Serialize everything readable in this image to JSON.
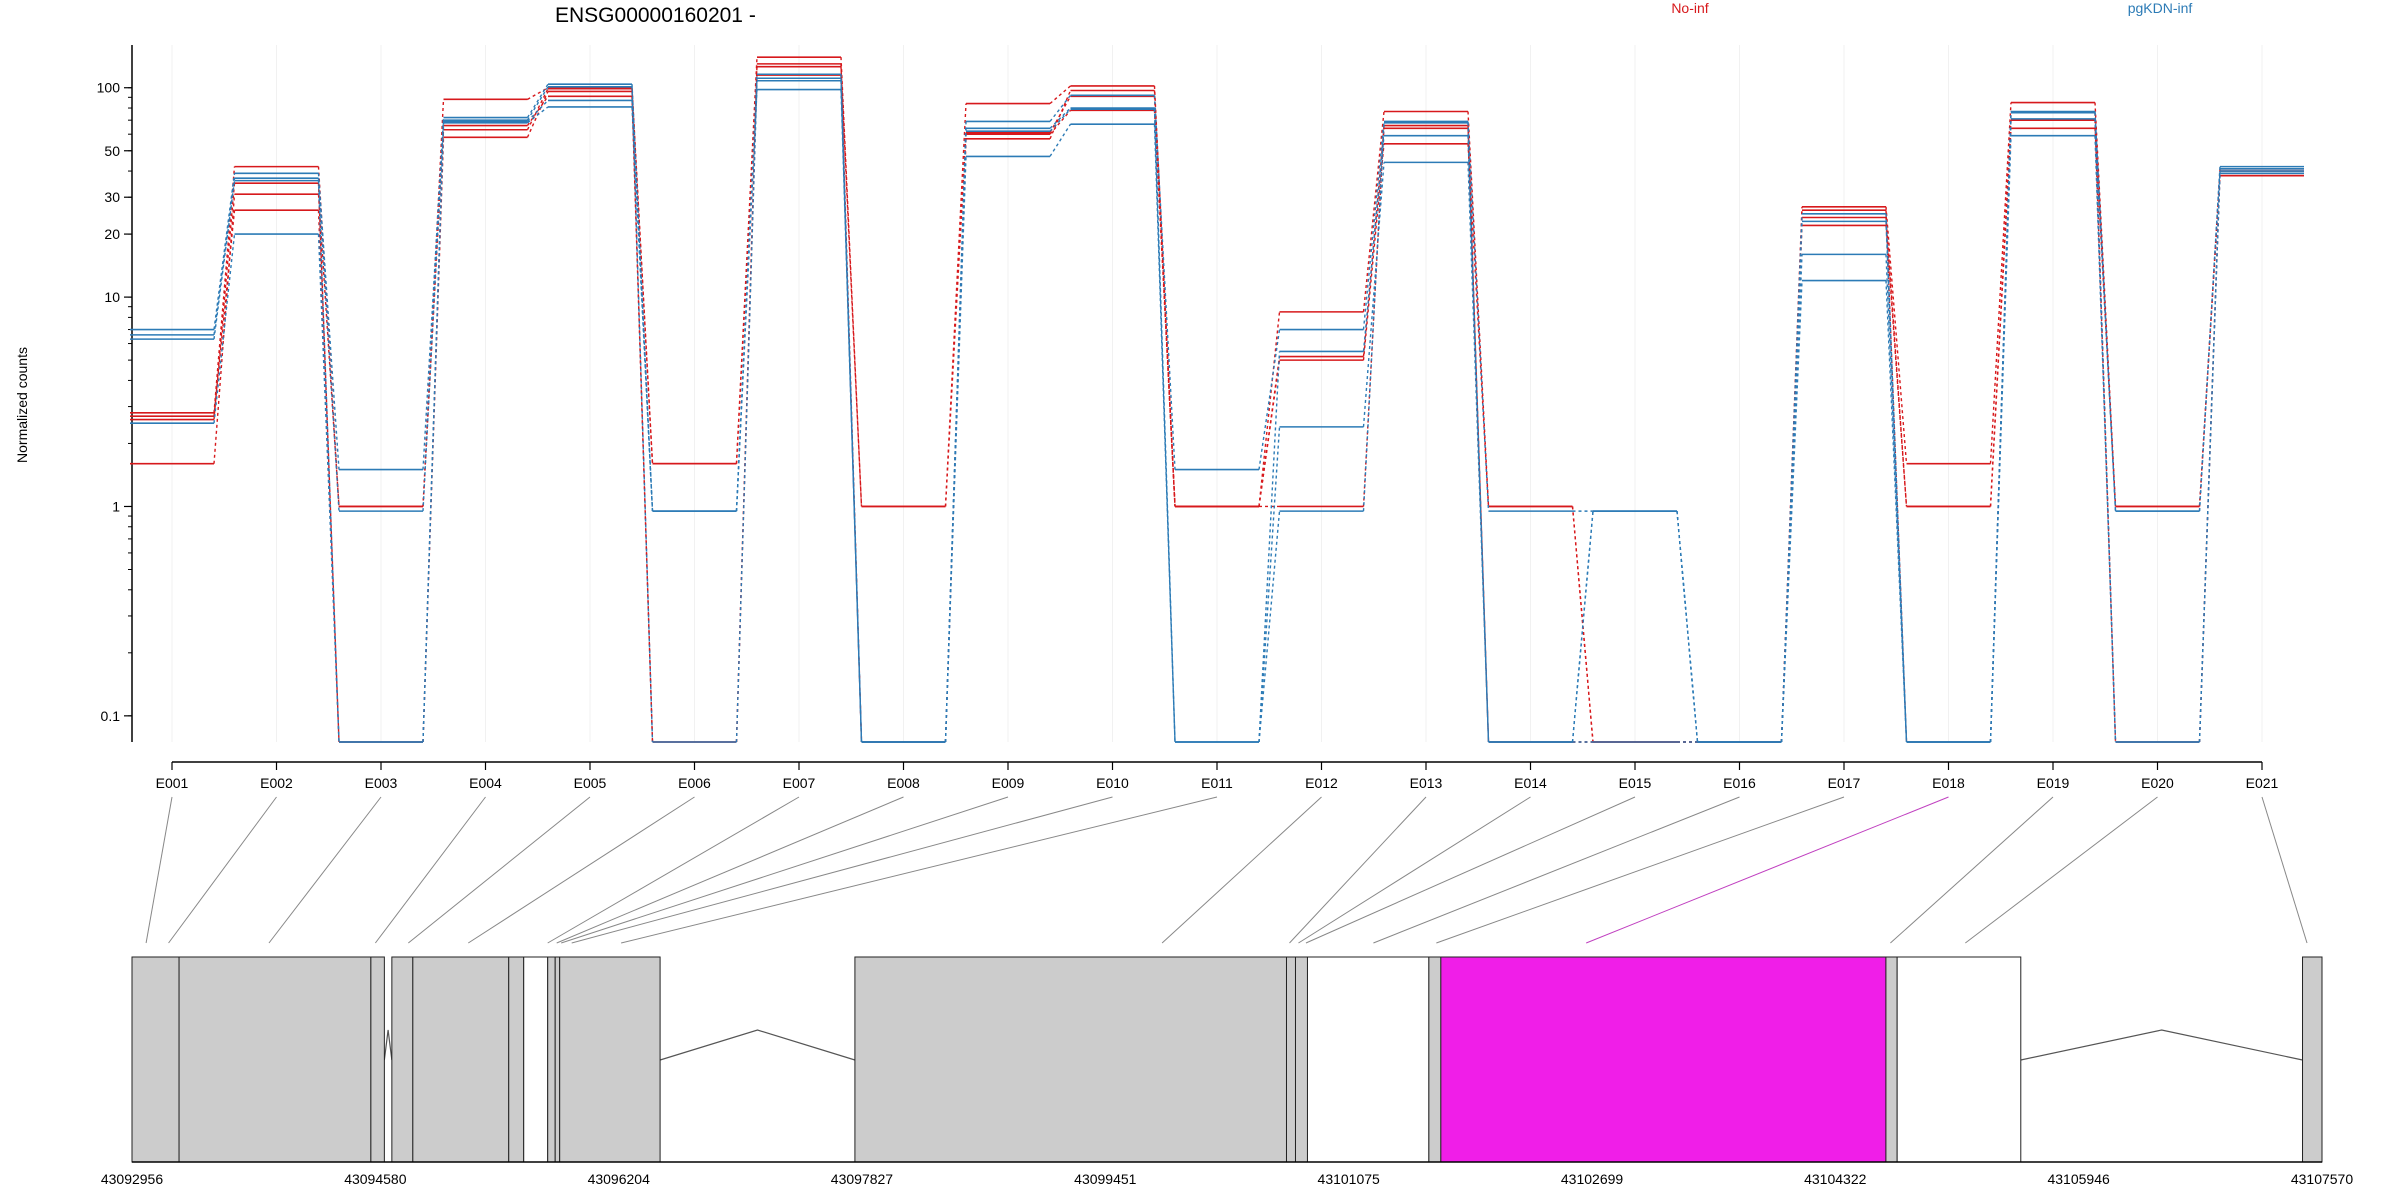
{
  "chart_data": {
    "type": "line",
    "title": "ENSG00000160201 -",
    "ylabel": "Normalized counts",
    "y_scale": "log",
    "y_ticks": [
      0.1,
      1,
      10,
      20,
      30,
      50,
      100
    ],
    "y_tick_labels": [
      "0.1",
      "1",
      "10",
      "20",
      "30",
      "50",
      "100"
    ],
    "ylim": [
      0.075,
      160
    ],
    "grid": "faint vertical",
    "legend_placement": "top",
    "categories": [
      "E001",
      "E002",
      "E003",
      "E004",
      "E005",
      "E006",
      "E007",
      "E008",
      "E009",
      "E010",
      "E011",
      "E012",
      "E013",
      "E014",
      "E015",
      "E016",
      "E017",
      "E018",
      "E019",
      "E020",
      "E021"
    ],
    "series": [
      {
        "name": "No-inf",
        "group": "No-inf",
        "values": [
          2.8,
          42,
          1,
          88,
          100,
          1.6,
          140,
          1,
          84,
          102,
          1,
          8.5,
          77,
          1,
          0.075,
          0.075,
          27,
          1.6,
          85,
          1,
          40
        ]
      },
      {
        "name": "",
        "group": "No-inf",
        "values": [
          1.6,
          31,
          1,
          63,
          99,
          1.6,
          126,
          1,
          61,
          91,
          1,
          5,
          54,
          1,
          0.075,
          0.075,
          24,
          1,
          64,
          1,
          38
        ]
      },
      {
        "name": "",
        "group": "No-inf",
        "values": [
          2.6,
          35,
          0.075,
          66,
          91,
          0.075,
          130,
          0.075,
          60,
          78,
          1,
          1,
          66,
          0.075,
          0.075,
          0.075,
          22,
          1,
          70,
          0.075,
          39
        ]
      },
      {
        "name": "",
        "group": "No-inf",
        "values": [
          2.7,
          26,
          0.075,
          58,
          96,
          0.075,
          115,
          0.075,
          57,
          97,
          1,
          5.2,
          64,
          0.075,
          0.075,
          0.075,
          26,
          0.075,
          76,
          0.075,
          41
        ]
      },
      {
        "name": "pgKDN-inf",
        "group": "pgKDN-inf",
        "values": [
          7,
          39,
          1.5,
          72,
          104,
          0.95,
          116,
          0.075,
          69,
          92,
          1.5,
          7,
          69,
          0.95,
          0.95,
          0.075,
          16,
          0.075,
          77,
          0.95,
          42
        ]
      },
      {
        "name": "",
        "group": "pgKDN-inf",
        "values": [
          6.3,
          36,
          0.075,
          68,
          81,
          0.95,
          98,
          0.075,
          47,
          67,
          0.075,
          2.4,
          44,
          0.075,
          0.95,
          0.075,
          12,
          0.075,
          59,
          0.075,
          39
        ]
      },
      {
        "name": "",
        "group": "pgKDN-inf",
        "values": [
          6.6,
          37,
          0.95,
          70,
          101,
          0.075,
          108,
          0.075,
          64,
          80,
          0.075,
          5.5,
          59,
          0.075,
          0.075,
          0.075,
          25,
          0.075,
          76,
          0.075,
          40
        ]
      },
      {
        "name": "",
        "group": "pgKDN-inf",
        "values": [
          2.5,
          20,
          0.075,
          69,
          87,
          0.95,
          111,
          0.075,
          62,
          79,
          0.075,
          0.95,
          68,
          0.075,
          0.95,
          0.075,
          23,
          0.075,
          71,
          0.95,
          41
        ]
      }
    ],
    "colors": {
      "No-inf": "#d7191c",
      "pgKDN-inf": "#2c7bb6"
    },
    "legend": [
      {
        "label": "No-inf",
        "color": "#d7191c"
      },
      {
        "label": "pgKDN-inf",
        "color": "#2c7bb6"
      }
    ],
    "gene_model": {
      "coordinates": [
        "43092956",
        "43094580",
        "43096204",
        "43097827",
        "43099451",
        "43101075",
        "43102699",
        "43104322",
        "43105946",
        "43107570"
      ],
      "coord_start": 43092956,
      "coord_end": 43107570,
      "highlight_exon": "E018",
      "highlight_color": "#f01ee8",
      "exon_fill": "#cccccc",
      "exons": [
        {
          "start": 43092956,
          "end": 43093270
        },
        {
          "start": 43093270,
          "end": 43094550
        },
        {
          "start": 43094550,
          "end": 43094640
        },
        {
          "start": 43094690,
          "end": 43094830
        },
        {
          "start": 43094830,
          "end": 43095470
        },
        {
          "start": 43095470,
          "end": 43095570
        },
        {
          "start": 43095570,
          "end": 43095730
        },
        {
          "start": 43095730,
          "end": 43095780
        },
        {
          "start": 43095780,
          "end": 43095810
        },
        {
          "start": 43095810,
          "end": 43096480
        },
        {
          "start": 43097780,
          "end": 43100660
        },
        {
          "start": 43100660,
          "end": 43100720
        },
        {
          "start": 43100720,
          "end": 43100800
        },
        {
          "start": 43100800,
          "end": 43101610
        },
        {
          "start": 43101610,
          "end": 43101690
        },
        {
          "start": 43101690,
          "end": 43104660
        },
        {
          "start": 43104660,
          "end": 43104735
        },
        {
          "start": 43104735,
          "end": 43105560
        },
        {
          "start": 43107440,
          "end": 43107570
        }
      ],
      "exon_link_targets": [
        43093050,
        43093200,
        43093870,
        43094580,
        43094800,
        43095200,
        43095730,
        43095790,
        43095820,
        43095890,
        43096220,
        43099830,
        43100680,
        43100740,
        43100790,
        43101240,
        43101660,
        43102660,
        43104690,
        43105190,
        43107470
      ]
    }
  }
}
